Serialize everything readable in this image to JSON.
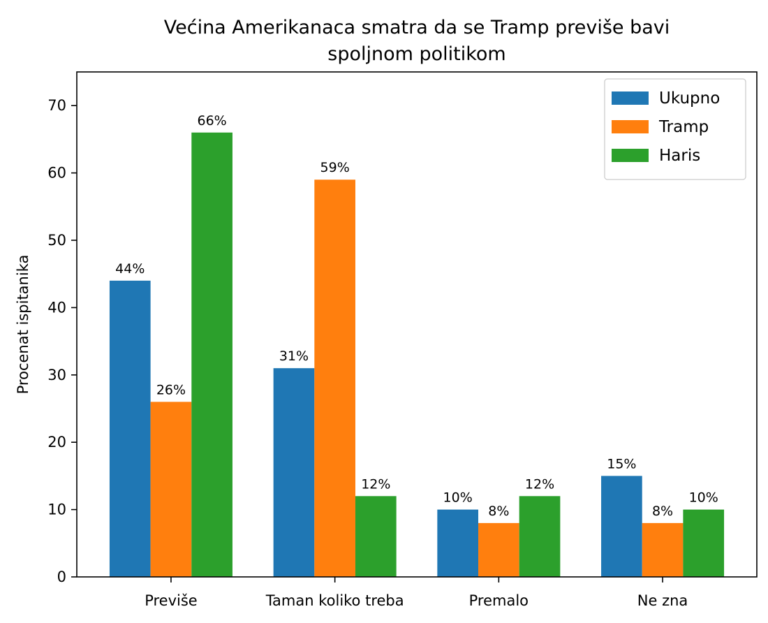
{
  "chart_data": {
    "type": "bar",
    "title": "Većina Amerikanaca smatra da se Tramp previše bavi spoljnom politikom",
    "title_lines": [
      "Većina Amerikanaca smatra da se Tramp previše bavi",
      "spoljnom politikom"
    ],
    "xlabel": "",
    "ylabel": "Procenat ispitanika",
    "ylim": [
      0,
      75
    ],
    "yticks": [
      0,
      10,
      20,
      30,
      40,
      50,
      60,
      70
    ],
    "categories": [
      "Previše",
      "Taman koliko treba",
      "Premalo",
      "Ne zna"
    ],
    "series": [
      {
        "name": "Ukupno",
        "color": "#1f77b4",
        "values": [
          44,
          31,
          10,
          15
        ],
        "labels": [
          "44%",
          "31%",
          "10%",
          "15%"
        ]
      },
      {
        "name": "Tramp",
        "color": "#ff7f0e",
        "values": [
          26,
          59,
          8,
          8
        ],
        "labels": [
          "26%",
          "59%",
          "8%",
          "8%"
        ]
      },
      {
        "name": "Haris",
        "color": "#2ca02c",
        "values": [
          66,
          12,
          12,
          10
        ],
        "labels": [
          "66%",
          "12%",
          "12%",
          "10%"
        ]
      }
    ],
    "legend_position": "top-right",
    "grid": false
  }
}
